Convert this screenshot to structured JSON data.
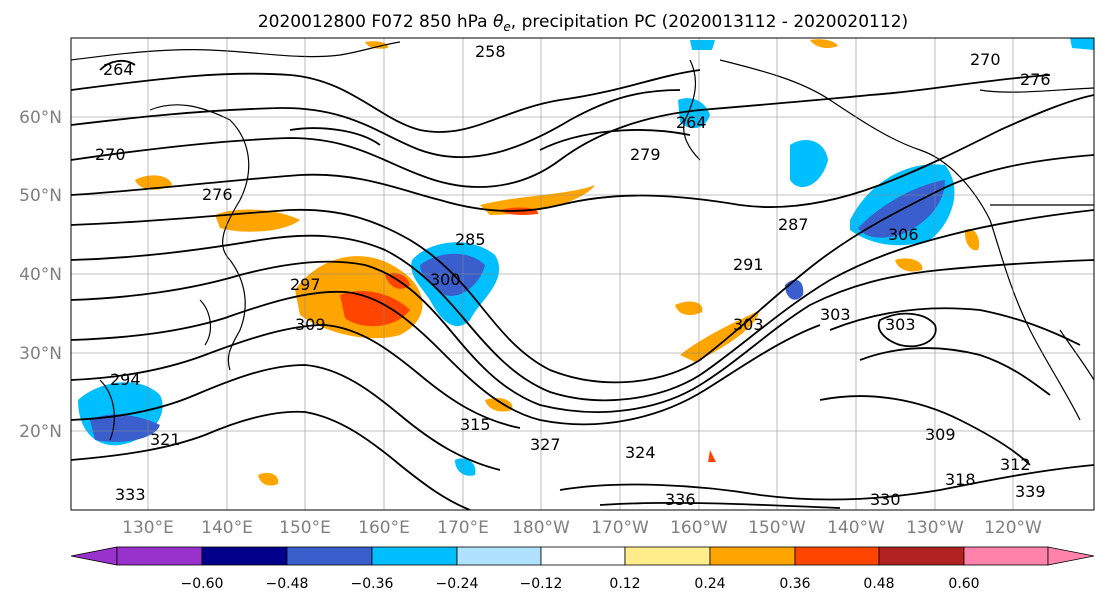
{
  "title": "2020012800 F072 850 hPa θe, precipitation PC (2020013112 - 2020020112)",
  "title_parts": {
    "prefix": "2020012800 F072 850 hPa ",
    "symbol": "θ",
    "subscript": "e",
    "suffix": ", precipitation PC (2020013112 - 2020020112)"
  },
  "axes": {
    "lat_labels": [
      "60°N",
      "50°N",
      "40°N",
      "30°N",
      "20°N"
    ],
    "lon_labels": [
      "130°E",
      "140°E",
      "150°E",
      "160°E",
      "170°E",
      "180°W",
      "170°W",
      "160°W",
      "150°W",
      "140°W",
      "130°W",
      "120°W"
    ]
  },
  "contour_labels": [
    "264",
    "276",
    "270",
    "258",
    "264",
    "270",
    "276",
    "279",
    "285",
    "291",
    "287",
    "297",
    "300",
    "303",
    "306",
    "309",
    "303",
    "309",
    "294",
    "303",
    "318",
    "321",
    "324",
    "315",
    "327",
    "330",
    "333",
    "336",
    "339",
    "312"
  ],
  "colorbar": {
    "ticks": [
      "−0.60",
      "−0.48",
      "−0.36",
      "−0.24",
      "−0.12",
      "0.12",
      "0.24",
      "0.36",
      "0.48",
      "0.60"
    ],
    "colors": [
      "#9932cc",
      "#00008b",
      "#3a5fcd",
      "#00bfff",
      "#b0e2ff",
      "#ffffff",
      "#ffec8b",
      "#ffa500",
      "#ff4500",
      "#b22222",
      "#ff82ab"
    ]
  }
}
